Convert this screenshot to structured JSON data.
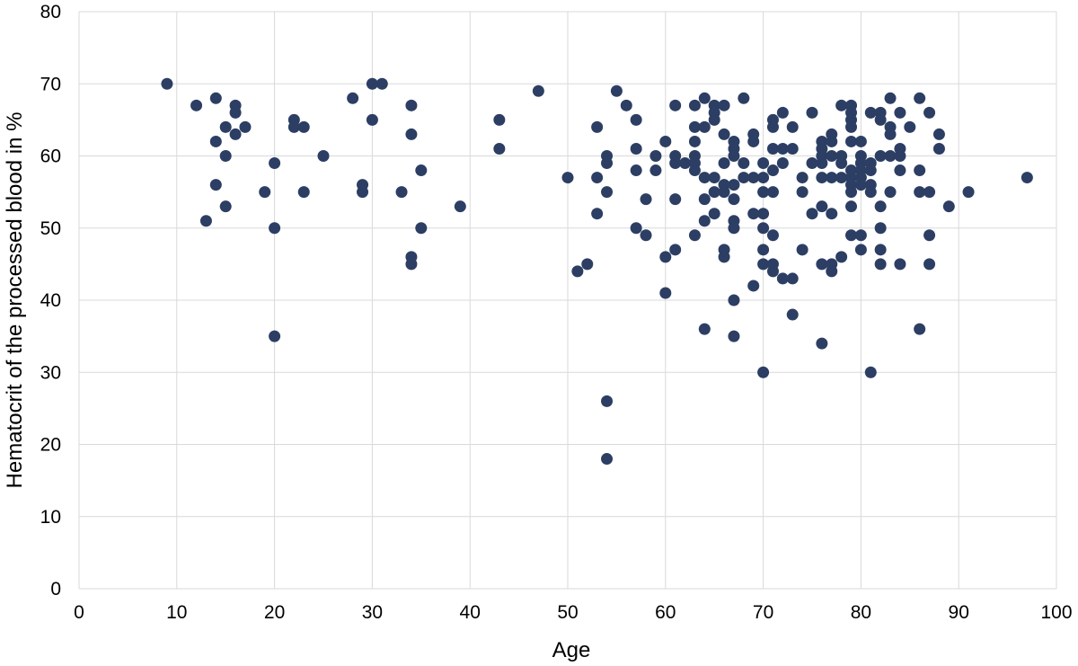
{
  "chart_data": {
    "type": "scatter",
    "title": "",
    "xlabel": "Age",
    "ylabel": "Hematocrit of the processed blood in %",
    "xlim": [
      0,
      100
    ],
    "ylim": [
      0,
      80
    ],
    "x_ticks": [
      0,
      10,
      20,
      30,
      40,
      50,
      60,
      70,
      80,
      90,
      100
    ],
    "y_ticks": [
      0,
      10,
      20,
      30,
      40,
      50,
      60,
      70,
      80
    ],
    "grid": true,
    "legend": "none",
    "marker_color": "#2c3e63",
    "series": [
      {
        "points": [
          [
            9,
            70
          ],
          [
            12,
            67
          ],
          [
            13,
            51
          ],
          [
            14,
            68
          ],
          [
            14,
            62
          ],
          [
            14,
            56
          ],
          [
            15,
            64
          ],
          [
            15,
            60
          ],
          [
            15,
            53
          ],
          [
            16,
            67
          ],
          [
            16,
            66
          ],
          [
            16,
            63
          ],
          [
            17,
            64
          ],
          [
            19,
            55
          ],
          [
            20,
            59
          ],
          [
            20,
            50
          ],
          [
            20,
            35
          ],
          [
            22,
            65
          ],
          [
            22,
            64
          ],
          [
            23,
            64
          ],
          [
            23,
            55
          ],
          [
            25,
            60
          ],
          [
            28,
            68
          ],
          [
            29,
            56
          ],
          [
            29,
            55
          ],
          [
            30,
            70
          ],
          [
            30,
            65
          ],
          [
            31,
            70
          ],
          [
            33,
            55
          ],
          [
            34,
            67
          ],
          [
            34,
            63
          ],
          [
            34,
            46
          ],
          [
            34,
            45
          ],
          [
            35,
            58
          ],
          [
            35,
            50
          ],
          [
            39,
            53
          ],
          [
            43,
            65
          ],
          [
            43,
            61
          ],
          [
            47,
            69
          ],
          [
            50,
            57
          ],
          [
            51,
            44
          ],
          [
            52,
            45
          ],
          [
            53,
            64
          ],
          [
            53,
            57
          ],
          [
            53,
            52
          ],
          [
            54,
            60
          ],
          [
            54,
            59
          ],
          [
            54,
            55
          ],
          [
            54,
            26
          ],
          [
            54,
            18
          ],
          [
            55,
            69
          ],
          [
            56,
            67
          ],
          [
            57,
            65
          ],
          [
            57,
            61
          ],
          [
            57,
            58
          ],
          [
            57,
            50
          ],
          [
            58,
            54
          ],
          [
            58,
            49
          ],
          [
            59,
            60
          ],
          [
            59,
            58
          ],
          [
            60,
            62
          ],
          [
            60,
            46
          ],
          [
            60,
            41
          ],
          [
            61,
            67
          ],
          [
            61,
            60
          ],
          [
            61,
            59
          ],
          [
            61,
            54
          ],
          [
            61,
            47
          ],
          [
            62,
            59
          ],
          [
            63,
            67
          ],
          [
            63,
            64
          ],
          [
            63,
            62
          ],
          [
            63,
            60
          ],
          [
            63,
            59
          ],
          [
            63,
            58
          ],
          [
            63,
            49
          ],
          [
            64,
            68
          ],
          [
            64,
            64
          ],
          [
            64,
            57
          ],
          [
            64,
            54
          ],
          [
            64,
            51
          ],
          [
            64,
            36
          ],
          [
            65,
            67
          ],
          [
            65,
            66
          ],
          [
            65,
            65
          ],
          [
            65,
            57
          ],
          [
            65,
            55
          ],
          [
            65,
            52
          ],
          [
            66,
            67
          ],
          [
            66,
            63
          ],
          [
            66,
            59
          ],
          [
            66,
            56
          ],
          [
            66,
            55
          ],
          [
            66,
            47
          ],
          [
            66,
            46
          ],
          [
            67,
            62
          ],
          [
            67,
            61
          ],
          [
            67,
            60
          ],
          [
            67,
            56
          ],
          [
            67,
            54
          ],
          [
            67,
            51
          ],
          [
            67,
            50
          ],
          [
            67,
            40
          ],
          [
            67,
            35
          ],
          [
            68,
            68
          ],
          [
            68,
            59
          ],
          [
            68,
            57
          ],
          [
            69,
            63
          ],
          [
            69,
            62
          ],
          [
            69,
            57
          ],
          [
            69,
            52
          ],
          [
            69,
            42
          ],
          [
            70,
            59
          ],
          [
            70,
            57
          ],
          [
            70,
            55
          ],
          [
            70,
            52
          ],
          [
            70,
            50
          ],
          [
            70,
            47
          ],
          [
            70,
            45
          ],
          [
            70,
            30
          ],
          [
            71,
            65
          ],
          [
            71,
            64
          ],
          [
            71,
            61
          ],
          [
            71,
            58
          ],
          [
            71,
            55
          ],
          [
            71,
            49
          ],
          [
            71,
            45
          ],
          [
            71,
            44
          ],
          [
            72,
            66
          ],
          [
            72,
            61
          ],
          [
            72,
            59
          ],
          [
            72,
            43
          ],
          [
            73,
            64
          ],
          [
            73,
            61
          ],
          [
            73,
            43
          ],
          [
            73,
            38
          ],
          [
            74,
            57
          ],
          [
            74,
            55
          ],
          [
            74,
            47
          ],
          [
            75,
            66
          ],
          [
            75,
            59
          ],
          [
            75,
            52
          ],
          [
            76,
            62
          ],
          [
            76,
            61
          ],
          [
            76,
            60
          ],
          [
            76,
            59
          ],
          [
            76,
            57
          ],
          [
            76,
            53
          ],
          [
            76,
            45
          ],
          [
            76,
            34
          ],
          [
            77,
            63
          ],
          [
            77,
            62
          ],
          [
            77,
            60
          ],
          [
            77,
            57
          ],
          [
            77,
            52
          ],
          [
            77,
            45
          ],
          [
            77,
            44
          ],
          [
            78,
            67
          ],
          [
            78,
            60
          ],
          [
            78,
            59
          ],
          [
            78,
            57
          ],
          [
            78,
            46
          ],
          [
            79,
            67
          ],
          [
            79,
            66
          ],
          [
            79,
            65
          ],
          [
            79,
            64
          ],
          [
            79,
            62
          ],
          [
            79,
            58
          ],
          [
            79,
            57
          ],
          [
            79,
            56
          ],
          [
            79,
            55
          ],
          [
            79,
            53
          ],
          [
            79,
            49
          ],
          [
            80,
            62
          ],
          [
            80,
            60
          ],
          [
            80,
            59
          ],
          [
            80,
            58
          ],
          [
            80,
            57
          ],
          [
            80,
            56
          ],
          [
            80,
            49
          ],
          [
            80,
            47
          ],
          [
            81,
            66
          ],
          [
            81,
            59
          ],
          [
            81,
            58
          ],
          [
            81,
            56
          ],
          [
            81,
            55
          ],
          [
            81,
            30
          ],
          [
            82,
            66
          ],
          [
            82,
            65
          ],
          [
            82,
            60
          ],
          [
            82,
            53
          ],
          [
            82,
            50
          ],
          [
            82,
            47
          ],
          [
            82,
            45
          ],
          [
            83,
            68
          ],
          [
            83,
            64
          ],
          [
            83,
            63
          ],
          [
            83,
            60
          ],
          [
            83,
            55
          ],
          [
            84,
            66
          ],
          [
            84,
            61
          ],
          [
            84,
            60
          ],
          [
            84,
            58
          ],
          [
            84,
            45
          ],
          [
            85,
            64
          ],
          [
            86,
            68
          ],
          [
            86,
            58
          ],
          [
            86,
            55
          ],
          [
            86,
            36
          ],
          [
            87,
            66
          ],
          [
            87,
            55
          ],
          [
            87,
            49
          ],
          [
            87,
            45
          ],
          [
            88,
            63
          ],
          [
            88,
            61
          ],
          [
            89,
            53
          ],
          [
            91,
            55
          ],
          [
            97,
            57
          ]
        ]
      }
    ]
  }
}
